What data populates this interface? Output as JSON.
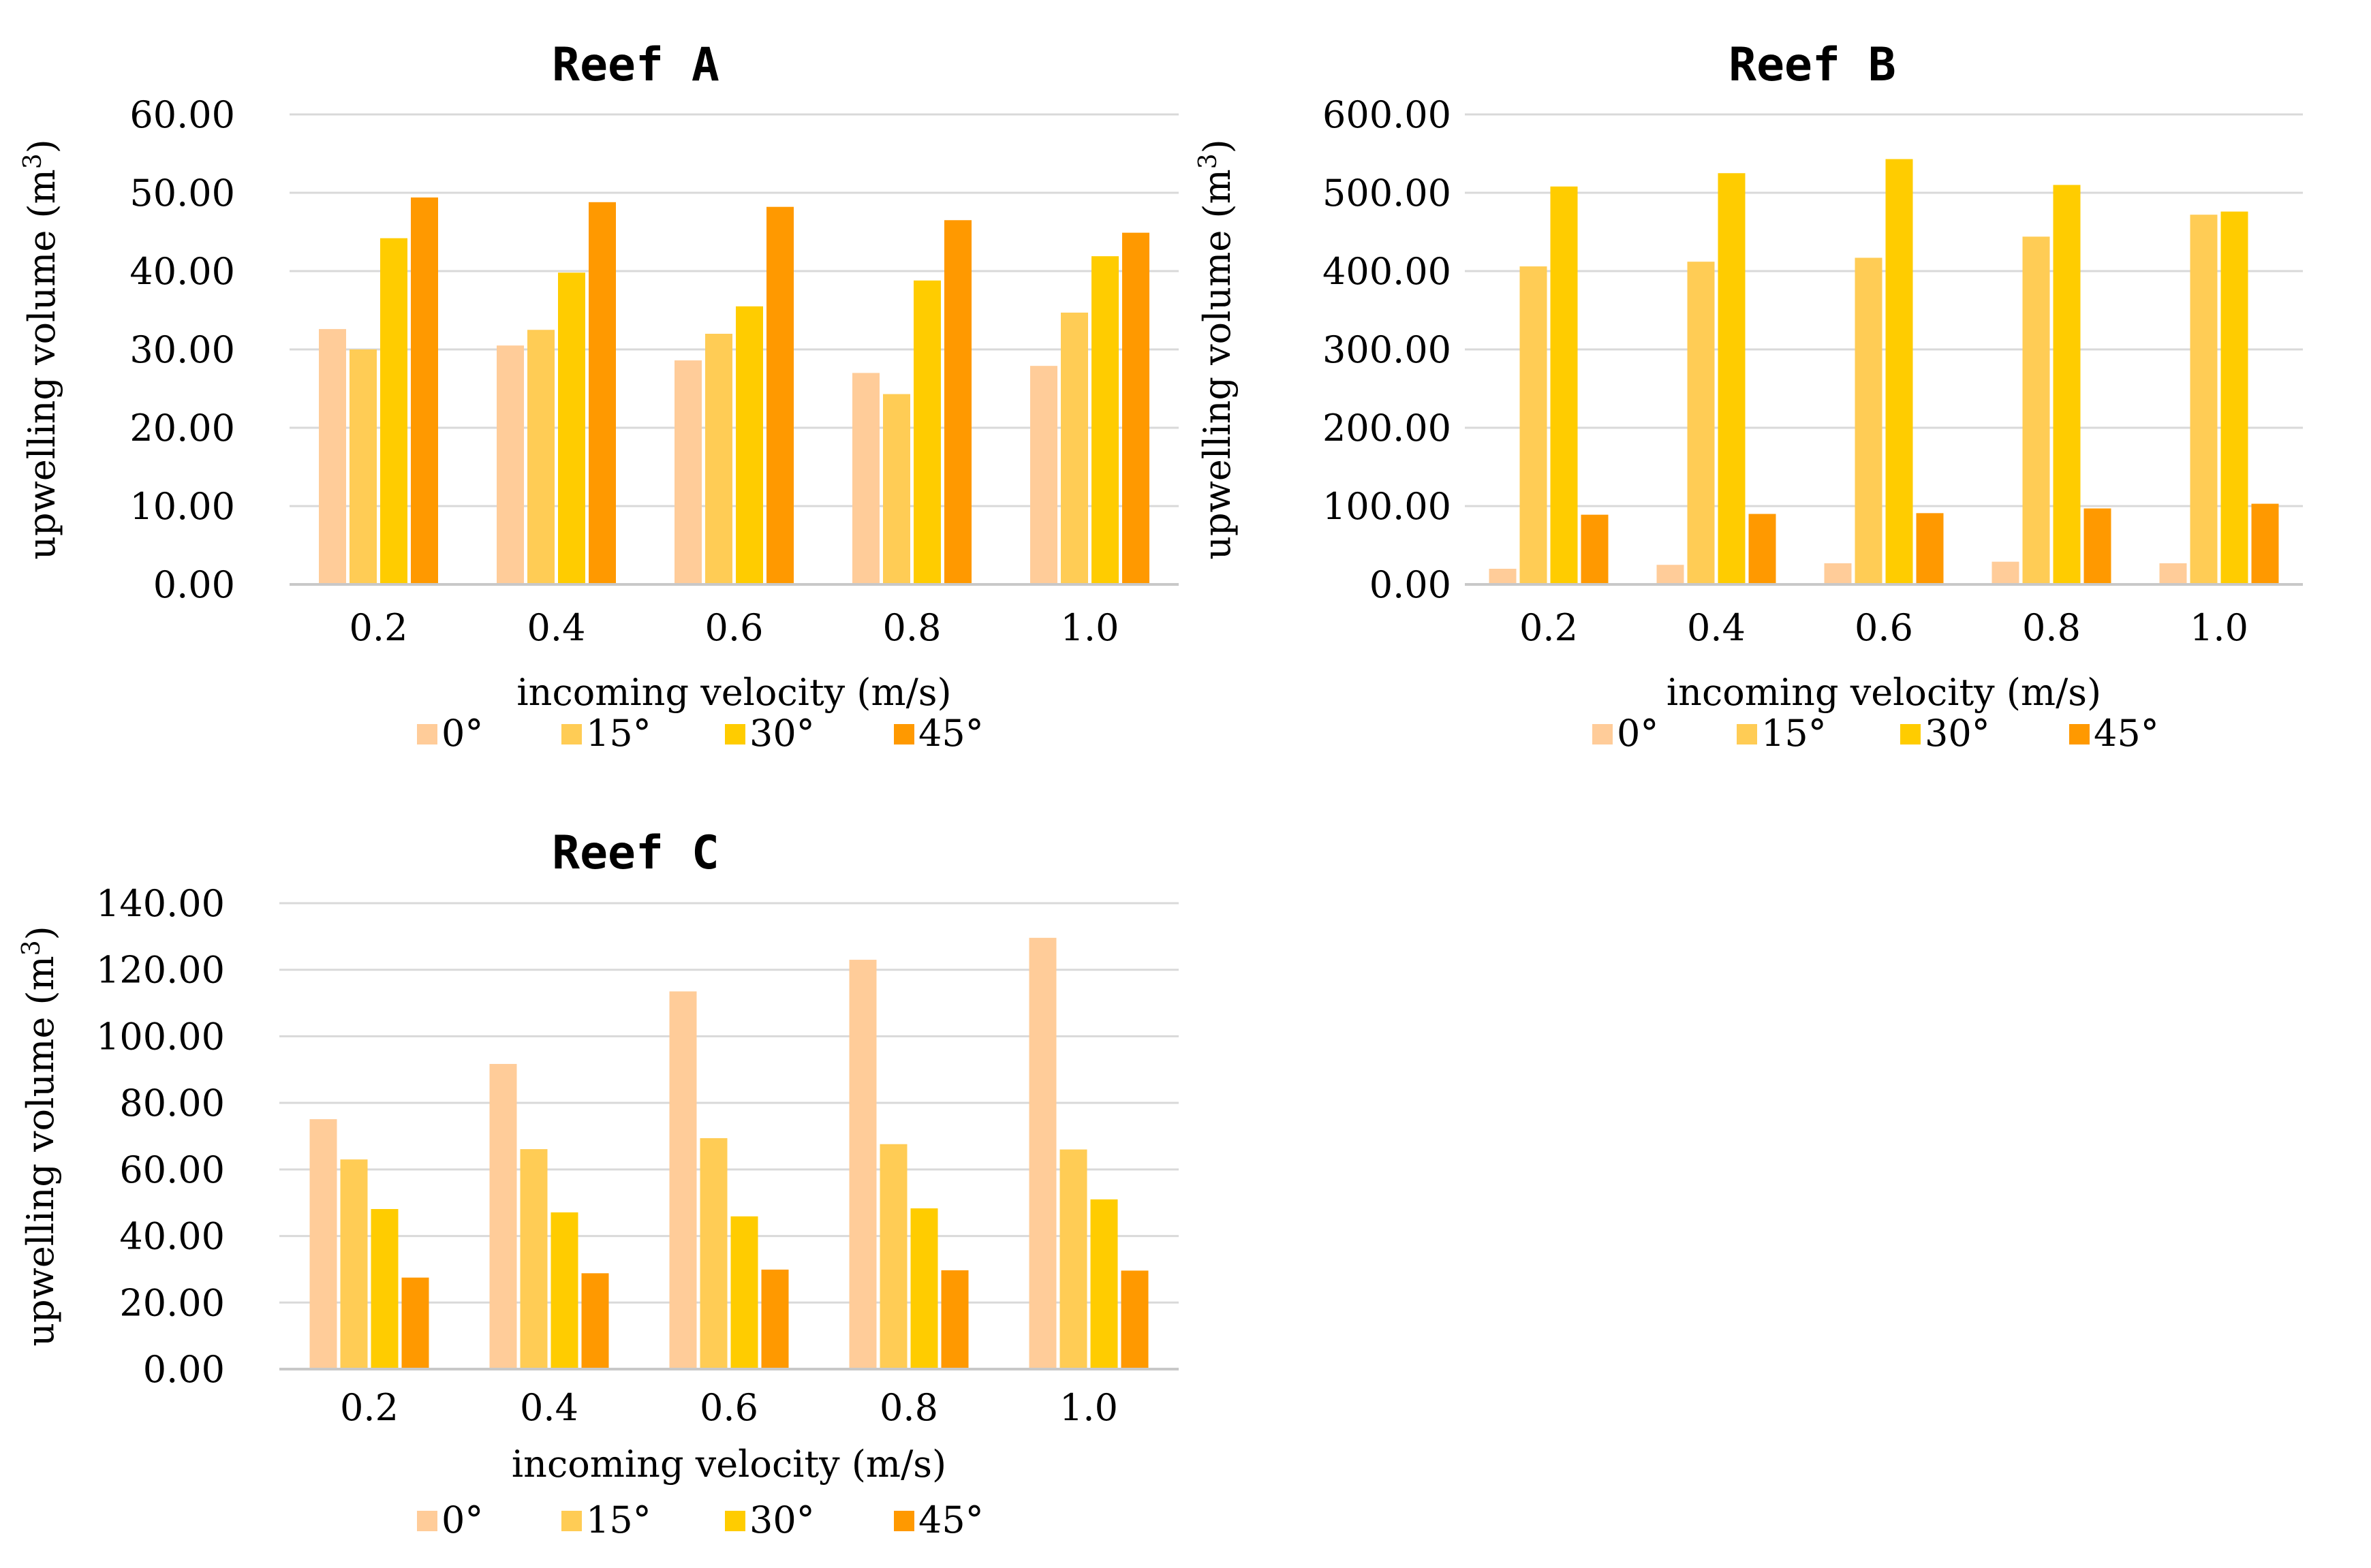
{
  "chart_data": [
    {
      "id": "reef-a",
      "type": "bar",
      "title": "Reef A",
      "xlabel": "incoming velocity (m/s)",
      "ylabel": "upwelling volume (m",
      "ylabel_sup": "3",
      "ylabel_end": ")",
      "categories": [
        "0.2",
        "0.4",
        "0.6",
        "0.8",
        "1.0"
      ],
      "ylim": [
        0,
        60
      ],
      "yticks": [
        "0.00",
        "10.00",
        "20.00",
        "30.00",
        "40.00",
        "50.00",
        "60.00"
      ],
      "grid": true,
      "legend_position": "bottom",
      "series": [
        {
          "name": "0°",
          "color": "#ffcc99",
          "values": [
            32.6,
            30.5,
            28.6,
            27.0,
            27.9
          ]
        },
        {
          "name": "15°",
          "color": "#ffcc55",
          "values": [
            30.0,
            32.5,
            32.0,
            24.3,
            34.7
          ]
        },
        {
          "name": "30°",
          "color": "#ffcc00",
          "values": [
            44.2,
            39.8,
            35.5,
            38.8,
            41.9
          ]
        },
        {
          "name": "45°",
          "color": "#ff9900",
          "values": [
            49.4,
            48.8,
            48.2,
            46.5,
            44.9
          ]
        }
      ]
    },
    {
      "id": "reef-b",
      "type": "bar",
      "title": "Reef B",
      "xlabel": "incoming velocity (m/s)",
      "ylabel": "upwelling volume (m",
      "ylabel_sup": "3",
      "ylabel_end": ")",
      "categories": [
        "0.2",
        "0.4",
        "0.6",
        "0.8",
        "1.0"
      ],
      "ylim": [
        0,
        600
      ],
      "yticks": [
        "0.00",
        "100.00",
        "200.00",
        "300.00",
        "400.00",
        "500.00",
        "600.00"
      ],
      "grid": true,
      "legend_position": "bottom",
      "series": [
        {
          "name": "0°",
          "color": "#ffcc99",
          "values": [
            20,
            25,
            27,
            29,
            27
          ]
        },
        {
          "name": "15°",
          "color": "#ffcc55",
          "values": [
            406,
            412,
            417,
            444,
            472
          ]
        },
        {
          "name": "30°",
          "color": "#ffcc00",
          "values": [
            508,
            525,
            543,
            510,
            476
          ]
        },
        {
          "name": "45°",
          "color": "#ff9900",
          "values": [
            89,
            90,
            91,
            97,
            103
          ]
        }
      ]
    },
    {
      "id": "reef-c",
      "type": "bar",
      "title": "Reef C",
      "xlabel": "incoming velocity (m/s)",
      "ylabel": "upwelling volume (m",
      "ylabel_sup": "3",
      "ylabel_end": ")",
      "categories": [
        "0.2",
        "0.4",
        "0.6",
        "0.8",
        "1.0"
      ],
      "ylim": [
        0,
        140
      ],
      "yticks": [
        "0.00",
        "20.00",
        "40.00",
        "60.00",
        "80.00",
        "100.00",
        "120.00",
        "140.00"
      ],
      "grid": true,
      "legend_position": "bottom",
      "series": [
        {
          "name": "0°",
          "color": "#ffcc99",
          "values": [
            75.1,
            91.7,
            113.5,
            123.0,
            129.6
          ]
        },
        {
          "name": "15°",
          "color": "#ffcc55",
          "values": [
            63.0,
            66.1,
            69.4,
            67.6,
            66.0
          ]
        },
        {
          "name": "30°",
          "color": "#ffcc00",
          "values": [
            48.1,
            47.1,
            45.9,
            48.3,
            51.0
          ]
        },
        {
          "name": "45°",
          "color": "#ff9900",
          "values": [
            27.5,
            28.8,
            29.9,
            29.7,
            29.6
          ]
        }
      ]
    }
  ]
}
